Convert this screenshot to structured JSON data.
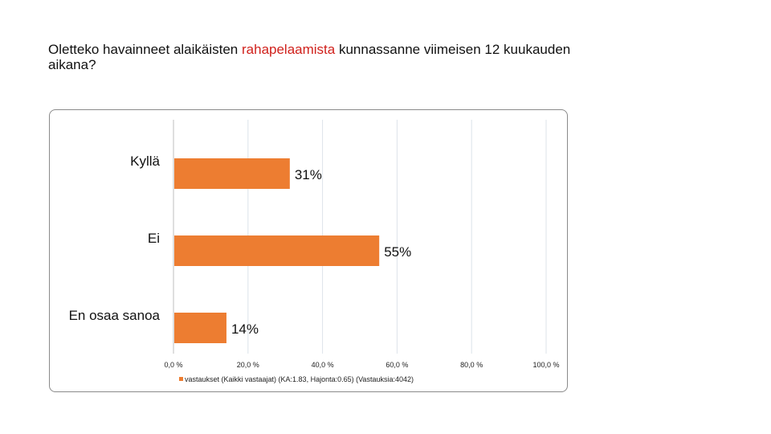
{
  "slide": {
    "title_part1": "Oletteko havainneet alaikäisten ",
    "title_highlight": "rahapelaamista",
    "title_part2": " kunnassanne viimeisen 12 kuukauden aikana?",
    "highlight_color": "#d0211c"
  },
  "chart_data": {
    "type": "bar",
    "orientation": "horizontal",
    "categories": [
      "Kyllä",
      "Ei",
      "En osaa sanoa"
    ],
    "series": [
      {
        "name": "vastaukset (Kaikki vastaajat) (KA:1.83, Hajonta:0.65) (Vastauksia:4042)",
        "values": [
          31,
          55,
          14
        ],
        "labels": [
          "31%",
          "55%",
          "14%"
        ],
        "color": "#ed7d31"
      }
    ],
    "xlim": [
      0,
      100
    ],
    "xticks": [
      0,
      20,
      40,
      60,
      80,
      100
    ],
    "xtick_labels": [
      "0,0 %",
      "20,0 %",
      "40,0 %",
      "60,0 %",
      "80,0 %",
      "100,0 %"
    ],
    "grid": true,
    "legend": "bottom"
  }
}
